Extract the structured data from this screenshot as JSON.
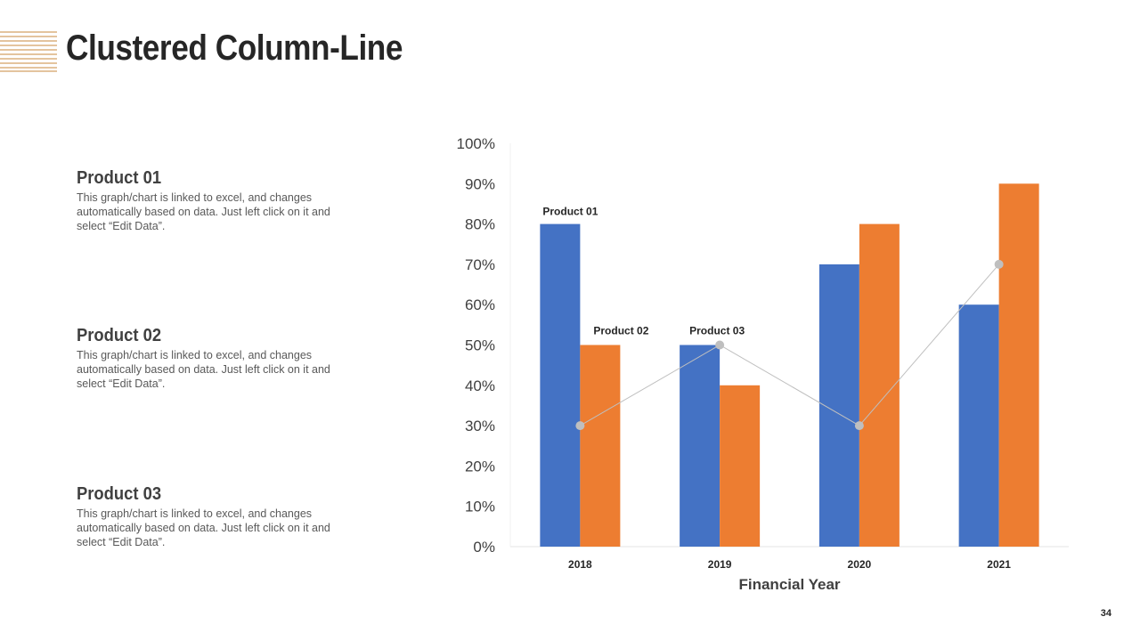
{
  "slide": {
    "title": "Clustered Column-Line",
    "page_number": "34"
  },
  "descriptions": [
    {
      "heading": "Product 01",
      "text": "This graph/chart is linked to excel, and changes automatically based on data. Just left click on it and select “Edit Data”."
    },
    {
      "heading": "Product 02",
      "text": "This graph/chart is linked to excel, and changes automatically based on data. Just left click on it and select “Edit Data”."
    },
    {
      "heading": "Product 03",
      "text": "This graph/chart is linked to excel, and changes automatically based on data. Just left click on it and select “Edit Data”."
    }
  ],
  "colors": {
    "product_01": "#4472C4",
    "product_02": "#ED7D31",
    "product_03": "#BFBFBF",
    "accent_lines": "#C98A3C"
  },
  "chart_data": {
    "type": "bar",
    "title": "",
    "xlabel": "Financial Year",
    "ylabel": "",
    "categories": [
      "2018",
      "2019",
      "2020",
      "2021"
    ],
    "ylim": [
      0,
      100
    ],
    "yticks": [
      "0%",
      "10%",
      "20%",
      "30%",
      "40%",
      "50%",
      "60%",
      "70%",
      "80%",
      "90%",
      "100%"
    ],
    "series": [
      {
        "name": "Product 01",
        "type": "bar",
        "values": [
          80,
          50,
          70,
          60
        ]
      },
      {
        "name": "Product 02",
        "type": "bar",
        "values": [
          50,
          40,
          80,
          90
        ]
      },
      {
        "name": "Product 03",
        "type": "line",
        "values": [
          30,
          50,
          30,
          70
        ]
      }
    ],
    "grid": false,
    "legend": "none"
  }
}
